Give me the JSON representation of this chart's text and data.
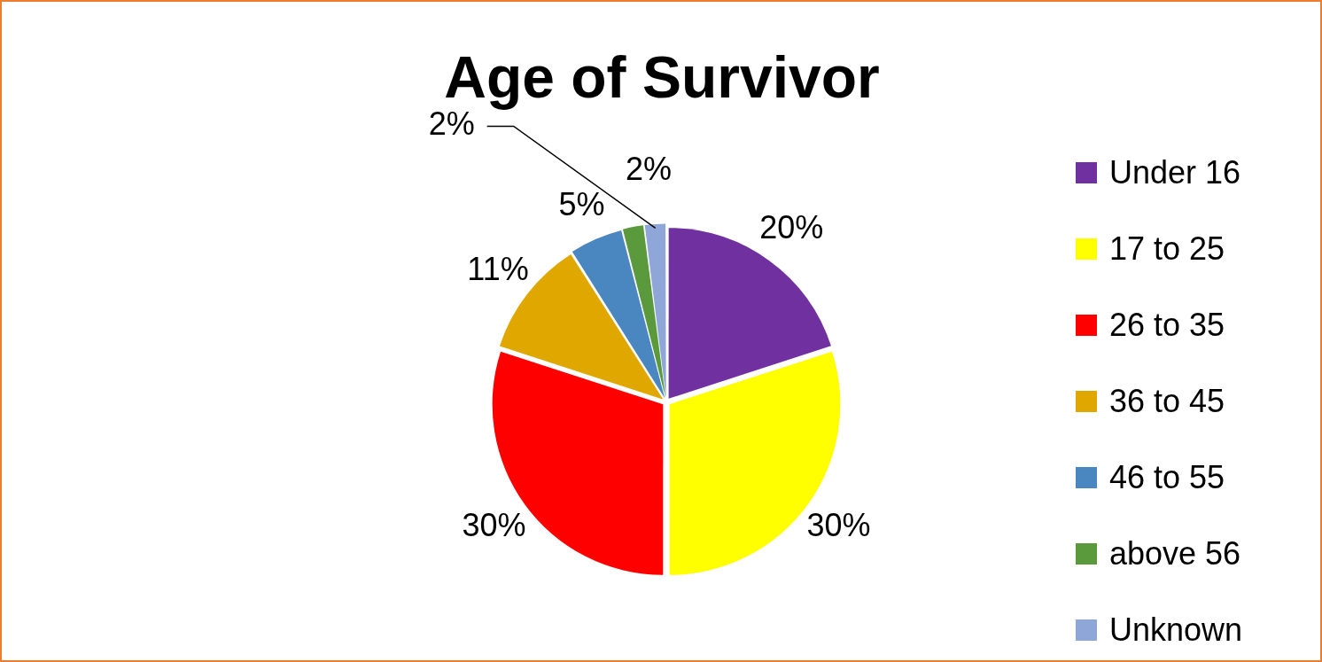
{
  "chart_data": {
    "type": "pie",
    "title": "Age of Survivor",
    "categories": [
      "Under 16",
      "17 to 25",
      "26 to 35",
      "36 to 45",
      "46 to 55",
      "above 56",
      "Unknown"
    ],
    "values": [
      20,
      30,
      30,
      11,
      5,
      2,
      2
    ],
    "colors": [
      "#7030a0",
      "#ffff00",
      "#ff0000",
      "#dfa700",
      "#4a86c0",
      "#5b9a3c",
      "#8fa6d8"
    ],
    "value_labels": [
      "20%",
      "30%",
      "30%",
      "11%",
      "5%",
      "2%",
      "2%"
    ],
    "legend": "right"
  }
}
